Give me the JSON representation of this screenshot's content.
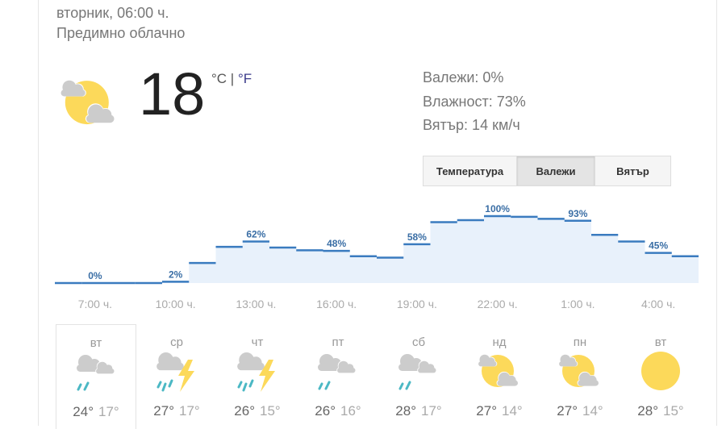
{
  "header": {
    "datetime": "вторник, 06:00 ч.",
    "condition": "Предимно облачно"
  },
  "current": {
    "temperature": "18",
    "unit_c": "°C",
    "separator": " | ",
    "unit_f": "°F",
    "icon": "partly-cloudy-icon"
  },
  "stats": {
    "precipitation": "Валежи: 0%",
    "humidity": "Влажност: 73%",
    "wind": "Вятър: 14 км/ч"
  },
  "tabs": [
    {
      "label": "Температура",
      "active": false
    },
    {
      "label": "Валежи",
      "active": true
    },
    {
      "label": "Вятър",
      "active": false
    }
  ],
  "colors": {
    "line": "#3a7bbf",
    "fill": "#e8f1fb",
    "label": "#3a6ea5",
    "sun": "#fcd95a",
    "cloud": "#cccccc",
    "rain": "#4bb8c4"
  },
  "chart_data": {
    "type": "area",
    "step": true,
    "unit": "%",
    "hours": [
      "6:00",
      "7:00",
      "8:00",
      "9:00",
      "10:00",
      "11:00",
      "12:00",
      "13:00",
      "14:00",
      "15:00",
      "16:00",
      "17:00",
      "18:00",
      "19:00",
      "20:00",
      "21:00",
      "22:00",
      "23:00",
      "0:00",
      "1:00",
      "2:00",
      "3:00",
      "4:00",
      "5:00"
    ],
    "values": [
      0,
      0,
      0,
      0,
      2,
      30,
      54,
      62,
      53,
      49,
      48,
      40,
      38,
      58,
      91,
      94,
      100,
      99,
      96,
      93,
      72,
      62,
      45,
      40
    ],
    "data_labels": [
      {
        "index": 1,
        "text": "0%"
      },
      {
        "index": 4,
        "text": "2%"
      },
      {
        "index": 7,
        "text": "62%"
      },
      {
        "index": 10,
        "text": "48%"
      },
      {
        "index": 13,
        "text": "58%"
      },
      {
        "index": 16,
        "text": "100%"
      },
      {
        "index": 19,
        "text": "93%"
      },
      {
        "index": 22,
        "text": "45%"
      }
    ],
    "x_ticks": [
      {
        "index": 1,
        "text": "7:00 ч."
      },
      {
        "index": 4,
        "text": "10:00 ч."
      },
      {
        "index": 7,
        "text": "13:00 ч."
      },
      {
        "index": 10,
        "text": "16:00 ч."
      },
      {
        "index": 13,
        "text": "19:00 ч."
      },
      {
        "index": 16,
        "text": "22:00 ч."
      },
      {
        "index": 19,
        "text": "1:00 ч."
      },
      {
        "index": 22,
        "text": "4:00 ч."
      }
    ],
    "ylim": [
      0,
      100
    ]
  },
  "forecast": [
    {
      "day": "вт",
      "icon": "rain",
      "high": "24°",
      "low": "17°",
      "selected": true
    },
    {
      "day": "ср",
      "icon": "thunder",
      "high": "27°",
      "low": "17°"
    },
    {
      "day": "чт",
      "icon": "thunder",
      "high": "26°",
      "low": "15°"
    },
    {
      "day": "пт",
      "icon": "rain",
      "high": "26°",
      "low": "16°"
    },
    {
      "day": "сб",
      "icon": "rain",
      "high": "28°",
      "low": "17°"
    },
    {
      "day": "нд",
      "icon": "partly",
      "high": "27°",
      "low": "14°"
    },
    {
      "day": "пн",
      "icon": "partly",
      "high": "27°",
      "low": "14°"
    },
    {
      "day": "вт",
      "icon": "sunny",
      "high": "28°",
      "low": "15°"
    }
  ]
}
